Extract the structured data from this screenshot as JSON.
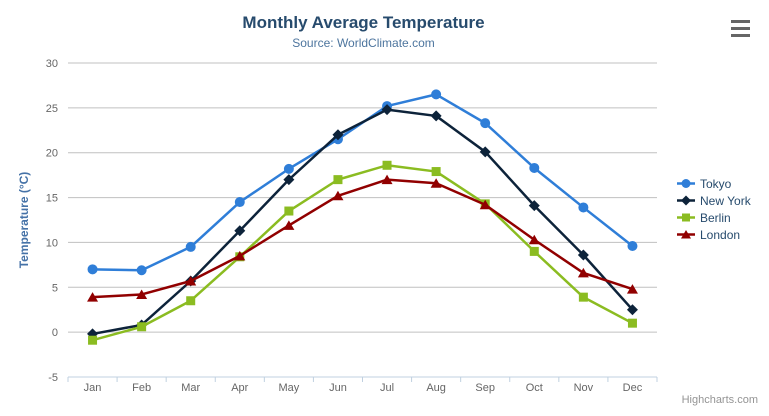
{
  "chart": {
    "title": "Monthly Average Temperature",
    "subtitle": "Source: WorldClimate.com",
    "y_axis_title": "Temperature (°C)",
    "credits": "Highcharts.com"
  },
  "colors": {
    "title": "#274b6d",
    "subtitle": "#4d759e",
    "axis_title": "#4572a7",
    "axis_labels": "#666666",
    "grid_line": "#c0c0c0",
    "axis_line": "#c0d0e0",
    "legend_text": "#274b6d",
    "credits": "#949494",
    "menu_icon": "#666666"
  },
  "chart_data": {
    "type": "line",
    "title": "Monthly Average Temperature",
    "subtitle": "Source: WorldClimate.com",
    "xlabel": "",
    "ylabel": "Temperature (°C)",
    "categories": [
      "Jan",
      "Feb",
      "Mar",
      "Apr",
      "May",
      "Jun",
      "Jul",
      "Aug",
      "Sep",
      "Oct",
      "Nov",
      "Dec"
    ],
    "ylim": [
      -5,
      30
    ],
    "ytick_step": 5,
    "grid": true,
    "legend_position": "right",
    "series": [
      {
        "name": "Tokyo",
        "color": "#2f7ed8",
        "marker": "circle",
        "values": [
          7.0,
          6.9,
          9.5,
          14.5,
          18.2,
          21.5,
          25.2,
          26.5,
          23.3,
          18.3,
          13.9,
          9.6
        ]
      },
      {
        "name": "New York",
        "color": "#0d233a",
        "marker": "diamond",
        "values": [
          -0.2,
          0.8,
          5.7,
          11.3,
          17.0,
          22.0,
          24.8,
          24.1,
          20.1,
          14.1,
          8.6,
          2.5
        ]
      },
      {
        "name": "Berlin",
        "color": "#8bbc21",
        "marker": "square",
        "values": [
          -0.9,
          0.6,
          3.5,
          8.4,
          13.5,
          17.0,
          18.6,
          17.9,
          14.3,
          9.0,
          3.9,
          1.0
        ]
      },
      {
        "name": "London",
        "color": "#910000",
        "marker": "triangle",
        "values": [
          3.9,
          4.2,
          5.7,
          8.5,
          11.9,
          15.2,
          17.0,
          16.6,
          14.2,
          10.3,
          6.6,
          4.8
        ]
      }
    ]
  }
}
